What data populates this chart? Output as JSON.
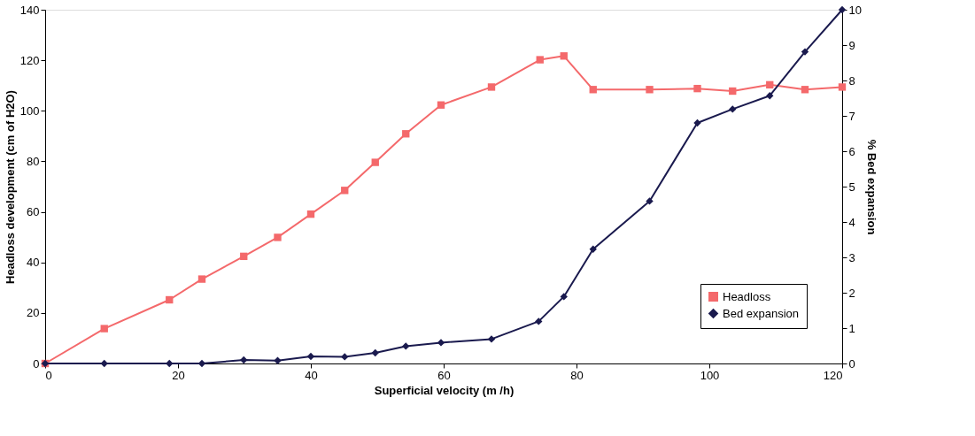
{
  "chart_data": {
    "type": "line",
    "xlabel": "Superficial velocity (m /h)",
    "ylabel": "Headloss development (cm of H2O)",
    "y2label": "% Bed expansion",
    "xlim": [
      0,
      120
    ],
    "xticks": [
      0,
      20,
      40,
      60,
      80,
      100,
      120
    ],
    "ylim": [
      0,
      140
    ],
    "yticks": [
      0,
      20,
      40,
      60,
      80,
      100,
      120,
      140
    ],
    "y2lim": [
      0,
      10
    ],
    "y2ticks": [
      0,
      1,
      2,
      3,
      4,
      5,
      6,
      7,
      8,
      9,
      10
    ],
    "grid": false,
    "legend": "bottom right",
    "line_style": "solid",
    "series": [
      {
        "name": "Headloss",
        "color": "#f4696b",
        "marker": "square",
        "x": [
          0,
          8.9,
          18.7,
          23.6,
          29.9,
          35.0,
          40.0,
          45.1,
          49.7,
          54.3,
          59.6,
          67.2,
          74.5,
          78.1,
          82.5,
          91.0,
          98.2,
          103.5,
          109.1,
          114.4,
          120
        ],
        "values": [
          0,
          13.8,
          25.2,
          33.4,
          42.4,
          49.9,
          59.1,
          68.5,
          79.6,
          90.9,
          102.3,
          109.4,
          120.2,
          121.7,
          108.4,
          108.4,
          108.8,
          107.8,
          110.3,
          108.4,
          109.4
        ]
      },
      {
        "name": "Bed expansion",
        "color": "#1a1a4e",
        "marker": "diamond",
        "axis": "y2",
        "x": [
          0,
          8.9,
          18.7,
          23.6,
          29.9,
          35.0,
          40.0,
          45.1,
          49.7,
          54.3,
          59.6,
          67.2,
          74.3,
          78.1,
          82.5,
          91.0,
          98.2,
          103.5,
          109.1,
          114.4,
          120
        ],
        "values": [
          0,
          0,
          0,
          0,
          0.1,
          0.08,
          0.2,
          0.19,
          0.3,
          0.49,
          0.59,
          0.69,
          1.19,
          1.89,
          3.23,
          4.59,
          6.8,
          7.19,
          7.57,
          8.81,
          10
        ]
      }
    ]
  }
}
